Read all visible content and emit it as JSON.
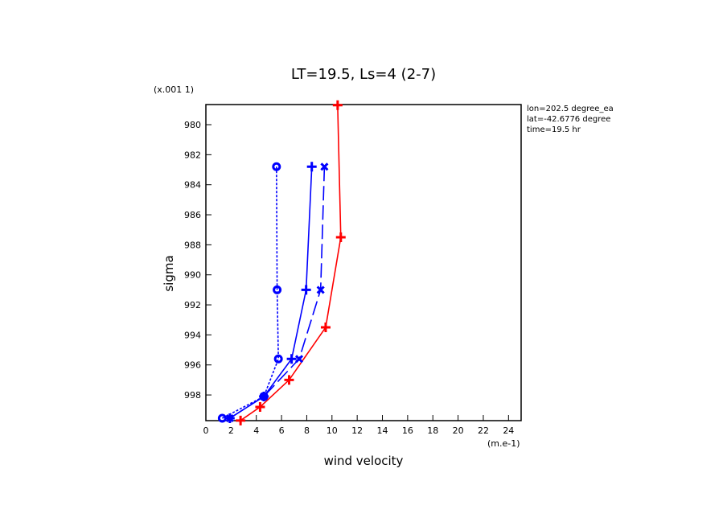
{
  "chart_data": {
    "type": "line",
    "title": "LT=19.5, Ls=4 (2-7)",
    "y_scale_label": "(x.001 1)",
    "y_label": "sigma",
    "x_label": "wind velocity",
    "x_unit_label": "(m.e-1)",
    "annotations": [
      "lon=202.5 degree_ea",
      "lat=-42.6776 degree",
      "time=19.5 hr"
    ],
    "xlim": [
      0,
      25
    ],
    "xticks": [
      0,
      2,
      4,
      6,
      8,
      10,
      12,
      14,
      16,
      18,
      20,
      22,
      24
    ],
    "ylim": [
      978.66,
      999.71
    ],
    "yticks": [
      980,
      982,
      984,
      986,
      988,
      990,
      992,
      994,
      996,
      998
    ],
    "y_inverted": true,
    "series": [
      {
        "color": "#ff0000",
        "dash": "solid",
        "marker": "plus",
        "values": [
          10.45,
          10.7,
          9.5,
          6.6,
          4.3,
          2.75
        ],
        "sigma": [
          978.7,
          987.5,
          993.5,
          997.0,
          998.8,
          999.7
        ]
      },
      {
        "color": "#0000ff",
        "dash": "solid",
        "marker": "plus",
        "values": [
          8.4,
          7.95,
          6.8,
          4.6,
          1.9
        ],
        "sigma": [
          982.8,
          991.0,
          995.6,
          998.1,
          999.55
        ]
      },
      {
        "color": "#0000ff",
        "dash": "long",
        "marker": "x",
        "values": [
          9.4,
          9.1,
          7.4,
          4.6,
          1.9
        ],
        "sigma": [
          982.8,
          991.0,
          995.6,
          998.1,
          999.55
        ]
      },
      {
        "color": "#0000ff",
        "dash": "short",
        "marker": "circle",
        "values": [
          5.6,
          5.65,
          5.75,
          4.6,
          1.3
        ],
        "sigma": [
          982.8,
          991.0,
          995.6,
          998.1,
          999.55
        ]
      }
    ]
  }
}
